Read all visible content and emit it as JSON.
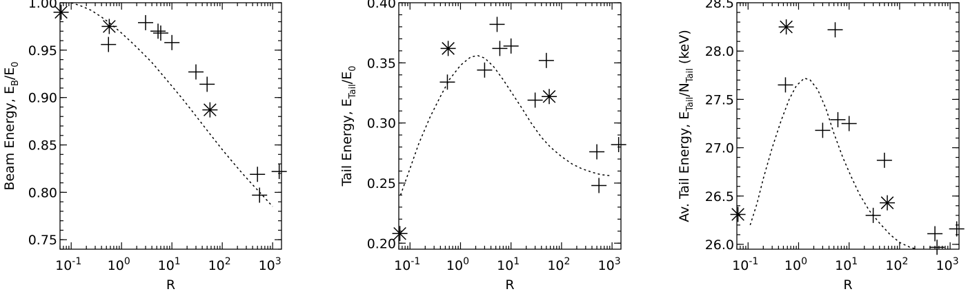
{
  "chart_data": [
    {
      "type": "scatter",
      "xlabel": "R",
      "ylabel": {
        "pre": "Beam Energy, E",
        "sub": "B",
        "mid": "/E",
        "sub2": "0",
        "post": ""
      },
      "xscale": "log",
      "xlim": [
        0.06,
        1500
      ],
      "ylim": [
        0.74,
        1.0
      ],
      "yticks": [
        "0.75",
        "0.80",
        "0.85",
        "0.90",
        "0.95",
        "1.00"
      ],
      "xticks": [
        {
          "base": "10",
          "exp": "-1"
        },
        {
          "base": "10",
          "exp": "0"
        },
        {
          "base": "10",
          "exp": "1"
        },
        {
          "base": "10",
          "exp": "2"
        },
        {
          "base": "10",
          "exp": "3"
        }
      ],
      "points": [
        {
          "x": 0.063,
          "y": 0.99,
          "marker": "asterisk"
        },
        {
          "x": 0.57,
          "y": 0.975,
          "marker": "asterisk"
        },
        {
          "x": 0.55,
          "y": 0.956,
          "marker": "plus"
        },
        {
          "x": 3.0,
          "y": 0.979,
          "marker": "plus"
        },
        {
          "x": 5.3,
          "y": 0.97,
          "marker": "plus"
        },
        {
          "x": 6.0,
          "y": 0.968,
          "marker": "plus"
        },
        {
          "x": 10.0,
          "y": 0.958,
          "marker": "plus"
        },
        {
          "x": 30.0,
          "y": 0.927,
          "marker": "plus"
        },
        {
          "x": 50.0,
          "y": 0.914,
          "marker": "plus"
        },
        {
          "x": 57.0,
          "y": 0.887,
          "marker": "asterisk"
        },
        {
          "x": 500.0,
          "y": 0.819,
          "marker": "plus"
        },
        {
          "x": 550.0,
          "y": 0.797,
          "marker": "plus"
        },
        {
          "x": 1350.0,
          "y": 0.822,
          "marker": "plus"
        }
      ],
      "fit_curve": {
        "x": [
          0.1,
          0.15,
          0.25,
          0.4,
          0.6,
          1,
          1.6,
          2.5,
          4,
          6,
          10,
          16,
          25,
          40,
          60,
          100,
          160,
          250,
          400,
          600,
          1000
        ],
        "y": [
          1.0,
          0.997,
          0.992,
          0.985,
          0.978,
          0.968,
          0.958,
          0.948,
          0.937,
          0.926,
          0.912,
          0.899,
          0.886,
          0.872,
          0.86,
          0.845,
          0.832,
          0.82,
          0.808,
          0.798,
          0.785
        ]
      }
    },
    {
      "type": "scatter",
      "xlabel": "R",
      "ylabel": {
        "pre": "Tail Energy, E",
        "sub": "Tail",
        "mid": "/E",
        "sub2": "0",
        "post": ""
      },
      "xscale": "log",
      "xlim": [
        0.06,
        1500
      ],
      "ylim": [
        0.195,
        0.4
      ],
      "yticks": [
        "0.20",
        "0.25",
        "0.30",
        "0.35",
        "0.40"
      ],
      "xticks": [
        {
          "base": "10",
          "exp": "-1"
        },
        {
          "base": "10",
          "exp": "0"
        },
        {
          "base": "10",
          "exp": "1"
        },
        {
          "base": "10",
          "exp": "2"
        },
        {
          "base": "10",
          "exp": "3"
        }
      ],
      "points": [
        {
          "x": 0.063,
          "y": 0.208,
          "marker": "asterisk"
        },
        {
          "x": 0.57,
          "y": 0.362,
          "marker": "asterisk"
        },
        {
          "x": 0.55,
          "y": 0.334,
          "marker": "plus"
        },
        {
          "x": 3.0,
          "y": 0.344,
          "marker": "plus"
        },
        {
          "x": 5.3,
          "y": 0.382,
          "marker": "plus"
        },
        {
          "x": 6.0,
          "y": 0.362,
          "marker": "plus"
        },
        {
          "x": 10.0,
          "y": 0.364,
          "marker": "plus"
        },
        {
          "x": 30.0,
          "y": 0.319,
          "marker": "plus"
        },
        {
          "x": 50.0,
          "y": 0.352,
          "marker": "plus"
        },
        {
          "x": 57.0,
          "y": 0.322,
          "marker": "asterisk"
        },
        {
          "x": 500.0,
          "y": 0.276,
          "marker": "plus"
        },
        {
          "x": 550.0,
          "y": 0.248,
          "marker": "plus"
        },
        {
          "x": 1350.0,
          "y": 0.282,
          "marker": "plus"
        }
      ],
      "fit_curve": {
        "x": [
          0.065,
          0.1,
          0.15,
          0.25,
          0.4,
          0.6,
          1,
          1.6,
          2.2,
          3,
          4.5,
          7,
          10,
          16,
          25,
          40,
          60,
          100,
          160,
          250,
          400,
          600,
          1000
        ],
        "y": [
          0.24,
          0.262,
          0.283,
          0.305,
          0.322,
          0.336,
          0.348,
          0.355,
          0.356,
          0.354,
          0.347,
          0.336,
          0.326,
          0.313,
          0.3,
          0.288,
          0.28,
          0.272,
          0.266,
          0.262,
          0.259,
          0.257,
          0.256
        ]
      }
    },
    {
      "type": "scatter",
      "xlabel": "R",
      "ylabel": {
        "pre": "Av. Tail Energy, E",
        "sub": "Tail",
        "mid": "/N",
        "sub2": "Tail",
        "post": " (keV)"
      },
      "xscale": "log",
      "xlim": [
        0.06,
        1500
      ],
      "ylim": [
        25.95,
        28.5
      ],
      "yticks": [
        "26.0",
        "26.5",
        "27.0",
        "27.5",
        "28.0",
        "28.5"
      ],
      "xticks": [
        {
          "base": "10",
          "exp": "-1"
        },
        {
          "base": "10",
          "exp": "0"
        },
        {
          "base": "10",
          "exp": "1"
        },
        {
          "base": "10",
          "exp": "2"
        },
        {
          "base": "10",
          "exp": "3"
        }
      ],
      "points": [
        {
          "x": 0.063,
          "y": 26.31,
          "marker": "asterisk"
        },
        {
          "x": 0.57,
          "y": 28.25,
          "marker": "asterisk"
        },
        {
          "x": 0.55,
          "y": 27.65,
          "marker": "plus"
        },
        {
          "x": 3.0,
          "y": 27.18,
          "marker": "plus"
        },
        {
          "x": 5.3,
          "y": 28.22,
          "marker": "plus"
        },
        {
          "x": 6.0,
          "y": 27.29,
          "marker": "plus"
        },
        {
          "x": 10.0,
          "y": 27.25,
          "marker": "plus"
        },
        {
          "x": 30.0,
          "y": 26.3,
          "marker": "plus"
        },
        {
          "x": 50.0,
          "y": 26.87,
          "marker": "plus"
        },
        {
          "x": 57.0,
          "y": 26.43,
          "marker": "asterisk"
        },
        {
          "x": 500.0,
          "y": 26.11,
          "marker": "plus"
        },
        {
          "x": 550.0,
          "y": 25.97,
          "marker": "plus"
        },
        {
          "x": 1350.0,
          "y": 26.16,
          "marker": "plus"
        }
      ],
      "fit_curve": {
        "x": [
          0.11,
          0.15,
          0.2,
          0.3,
          0.45,
          0.65,
          0.9,
          1.3,
          1.7,
          2.4,
          3.5,
          5,
          7.5,
          11,
          16,
          25,
          40,
          65,
          100,
          160,
          220
        ],
        "y": [
          26.2,
          26.42,
          26.68,
          27.0,
          27.28,
          27.5,
          27.64,
          27.72,
          27.7,
          27.6,
          27.4,
          27.15,
          26.9,
          26.7,
          26.52,
          26.35,
          26.22,
          26.1,
          26.02,
          25.97,
          25.95
        ]
      }
    }
  ]
}
